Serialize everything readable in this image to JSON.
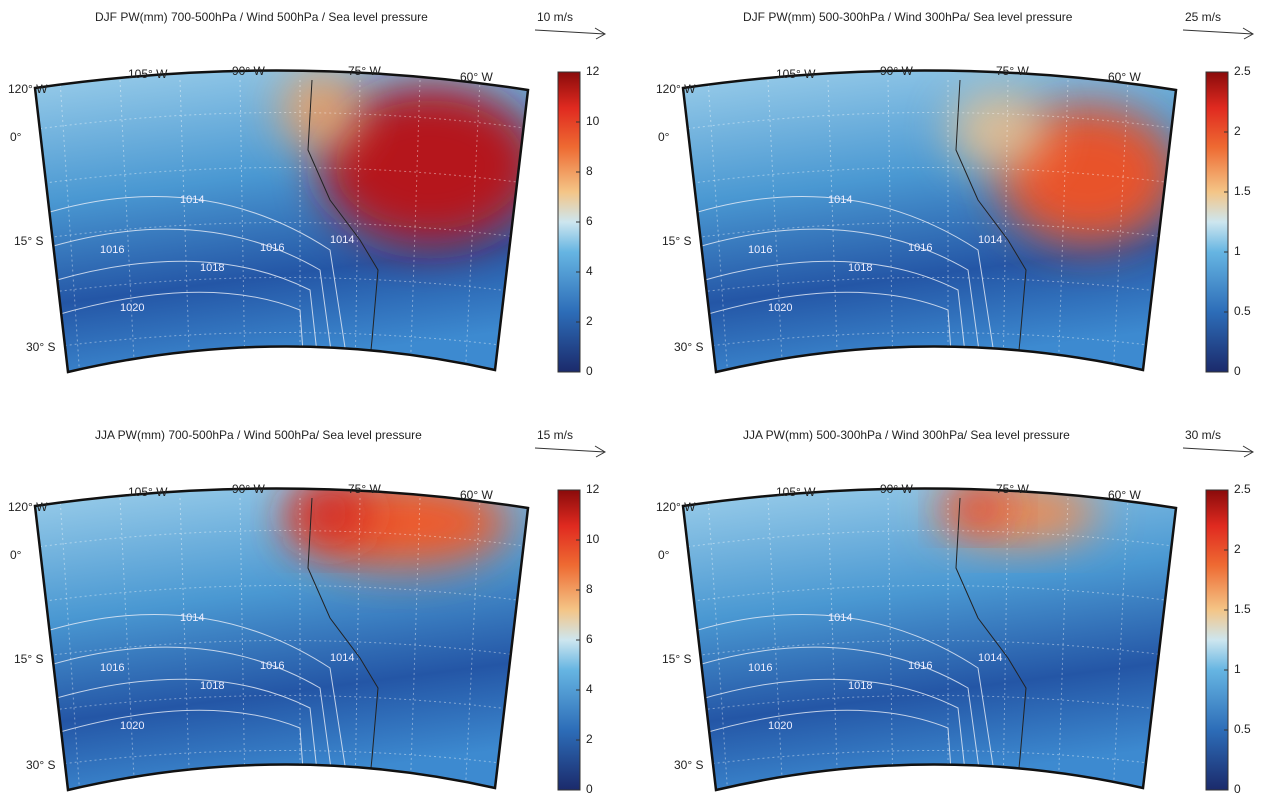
{
  "panels": [
    {
      "title": "DJF  PW(mm) 700-500hPa / Wind 500hPa / Sea level pressure",
      "scale_label": "10 m/s",
      "lon_labels": [
        "105° W",
        "90° W",
        "75° W",
        "60° W"
      ],
      "lat_labels": [
        "120° W",
        "0°",
        "15° S",
        "30° S"
      ],
      "colorbar": {
        "clim": [
          0,
          12
        ],
        "ticks": [
          0,
          2,
          4,
          6,
          8,
          10,
          12
        ]
      },
      "contour_labels": [
        1014,
        1016,
        1018,
        1020,
        1014,
        1016
      ]
    },
    {
      "title": "DJF  PW(mm) 500-300hPa / Wind 300hPa/ Sea level pressure",
      "scale_label": "25 m/s",
      "lon_labels": [
        "105° W",
        "90° W",
        "75° W",
        "60° W"
      ],
      "lat_labels": [
        "120° W",
        "0°",
        "15° S",
        "30° S"
      ],
      "colorbar": {
        "clim": [
          0,
          2.5
        ],
        "ticks": [
          0,
          0.5,
          1,
          1.5,
          2,
          2.5
        ]
      },
      "contour_labels": [
        1014,
        1016,
        1018,
        1020,
        1014,
        1016
      ]
    },
    {
      "title": "JJA  PW(mm) 700-500hPa / Wind 500hPa/ Sea level pressure",
      "scale_label": "15 m/s",
      "lon_labels": [
        "105° W",
        "90° W",
        "75° W",
        "60° W"
      ],
      "lat_labels": [
        "120° W",
        "0°",
        "15° S",
        "30° S"
      ],
      "colorbar": {
        "clim": [
          0,
          12
        ],
        "ticks": [
          0,
          2,
          4,
          6,
          8,
          10,
          12
        ]
      },
      "contour_labels": [
        1014,
        1016,
        1018,
        1020,
        1014,
        1016
      ]
    },
    {
      "title": "JJA  PW(mm) 500-300hPa / Wind 300hPa/ Sea level pressure",
      "scale_label": "30 m/s",
      "lon_labels": [
        "105° W",
        "90° W",
        "75° W",
        "60° W"
      ],
      "lat_labels": [
        "120° W",
        "0°",
        "15° S",
        "30° S"
      ],
      "colorbar": {
        "clim": [
          0,
          2.5
        ],
        "ticks": [
          0,
          0.5,
          1,
          1.5,
          2,
          2.5
        ]
      },
      "contour_labels": [
        1014,
        1016,
        1018,
        1020,
        1014,
        1016
      ]
    }
  ]
}
